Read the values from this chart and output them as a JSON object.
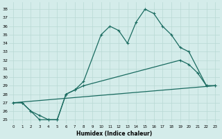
{
  "xlabel": "Humidex (Indice chaleur)",
  "bg_color": "#d4ecea",
  "line_color": "#1a6b60",
  "grid_color": "#b8d8d4",
  "xlim": [
    -0.5,
    23.5
  ],
  "ylim": [
    24.5,
    38.8
  ],
  "yticks": [
    25,
    26,
    27,
    28,
    29,
    30,
    31,
    32,
    33,
    34,
    35,
    36,
    37,
    38
  ],
  "xticks": [
    0,
    1,
    2,
    3,
    4,
    5,
    6,
    7,
    8,
    9,
    10,
    11,
    12,
    13,
    14,
    15,
    16,
    17,
    18,
    19,
    20,
    21,
    22,
    23
  ],
  "line1_x": [
    0,
    1,
    2,
    3,
    4,
    5,
    6,
    7,
    8,
    10,
    11,
    12,
    13,
    14,
    15,
    16,
    17,
    18,
    19,
    20,
    22,
    23
  ],
  "line1_y": [
    27.0,
    27.0,
    26.0,
    25.0,
    25.0,
    25.0,
    28.0,
    28.5,
    29.5,
    35.0,
    36.0,
    35.5,
    34.0,
    36.5,
    38.0,
    37.5,
    36.0,
    35.0,
    33.5,
    33.0,
    29.0,
    29.0
  ],
  "line2_x": [
    0,
    1,
    2,
    3,
    4,
    5,
    6,
    7,
    8,
    19,
    20,
    21,
    22,
    23
  ],
  "line2_y": [
    27.0,
    27.0,
    26.0,
    25.5,
    25.0,
    25.0,
    28.0,
    28.5,
    29.0,
    32.0,
    31.5,
    30.5,
    29.0,
    29.0
  ],
  "line3_x": [
    0,
    23
  ],
  "line3_y": [
    27.0,
    29.0
  ],
  "marker": "+",
  "markersize": 3,
  "linewidth": 0.9
}
